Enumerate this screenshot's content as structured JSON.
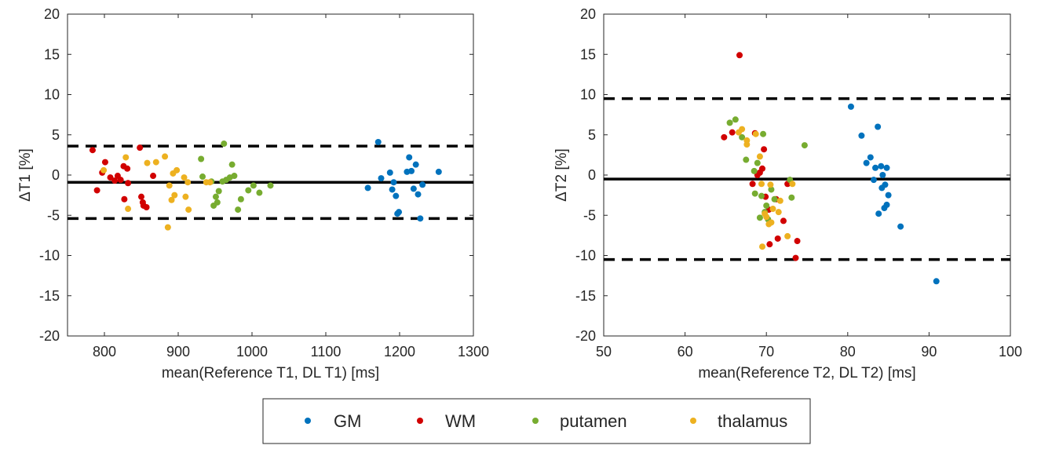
{
  "colors": {
    "GM": "#0072BD",
    "WM": "#D10000",
    "putamen": "#77AC30",
    "thalamus": "#EDB120",
    "axis": "#262626",
    "lines": "#000000"
  },
  "legend": {
    "placement": "bottom-center",
    "items": [
      "GM",
      "WM",
      "putamen",
      "thalamus"
    ]
  },
  "chart_data": [
    {
      "type": "scatter",
      "title": "",
      "xlabel": "mean(Reference T1, DL T1) [ms]",
      "ylabel": "ΔT1 [%]",
      "xlim": [
        750,
        1300
      ],
      "ylim": [
        -20,
        20
      ],
      "xticks": [
        800,
        900,
        1000,
        1100,
        1200,
        1300
      ],
      "yticks": [
        -20,
        -15,
        -10,
        -5,
        0,
        5,
        10,
        15,
        20
      ],
      "grid": false,
      "mean_line": -0.9,
      "limits_of_agreement": [
        3.6,
        -5.4
      ],
      "series": [
        {
          "name": "GM",
          "points": [
            [
              1171,
              4.1
            ],
            [
              1157,
              -1.6
            ],
            [
              1175,
              -0.4
            ],
            [
              1187,
              0.3
            ],
            [
              1190,
              -1.8
            ],
            [
              1192,
              -0.9
            ],
            [
              1195,
              -2.6
            ],
            [
              1197,
              -4.8
            ],
            [
              1199,
              -4.6
            ],
            [
              1210,
              0.4
            ],
            [
              1213,
              2.2
            ],
            [
              1216,
              0.5
            ],
            [
              1219,
              -1.7
            ],
            [
              1222,
              1.3
            ],
            [
              1225,
              -2.4
            ],
            [
              1228,
              -5.4
            ],
            [
              1231,
              -1.2
            ],
            [
              1253,
              0.4
            ]
          ]
        },
        {
          "name": "WM",
          "points": [
            [
              784,
              3.1
            ],
            [
              790,
              -1.9
            ],
            [
              797,
              0.3
            ],
            [
              801,
              1.6
            ],
            [
              808,
              -0.3
            ],
            [
              814,
              -0.7
            ],
            [
              818,
              -0.1
            ],
            [
              822,
              -0.6
            ],
            [
              826,
              1.1
            ],
            [
              827,
              -3.0
            ],
            [
              831,
              0.8
            ],
            [
              832,
              -1.0
            ],
            [
              848,
              3.4
            ],
            [
              850,
              -2.7
            ],
            [
              852,
              -3.4
            ],
            [
              853,
              -3.8
            ],
            [
              857,
              -4.0
            ],
            [
              866,
              -0.1
            ]
          ]
        },
        {
          "name": "putamen",
          "points": [
            [
              931,
              2.0
            ],
            [
              933,
              -0.2
            ],
            [
              945,
              -0.8
            ],
            [
              948,
              -3.8
            ],
            [
              951,
              -2.7
            ],
            [
              953,
              -3.4
            ],
            [
              955,
              -2.0
            ],
            [
              960,
              -0.8
            ],
            [
              962,
              3.9
            ],
            [
              965,
              -0.6
            ],
            [
              970,
              -0.3
            ],
            [
              973,
              1.3
            ],
            [
              976,
              -0.1
            ],
            [
              981,
              -4.3
            ],
            [
              985,
              -3.0
            ],
            [
              995,
              -1.9
            ],
            [
              1002,
              -1.3
            ],
            [
              1010,
              -2.2
            ],
            [
              1025,
              -1.3
            ]
          ]
        },
        {
          "name": "thalamus",
          "points": [
            [
              799,
              0.6
            ],
            [
              829,
              2.2
            ],
            [
              832,
              -4.2
            ],
            [
              858,
              1.5
            ],
            [
              870,
              1.6
            ],
            [
              882,
              2.3
            ],
            [
              886,
              -6.5
            ],
            [
              888,
              -1.3
            ],
            [
              891,
              -3.1
            ],
            [
              893,
              0.2
            ],
            [
              895,
              -2.5
            ],
            [
              898,
              0.6
            ],
            [
              908,
              -0.3
            ],
            [
              910,
              -2.7
            ],
            [
              913,
              -0.9
            ],
            [
              914,
              -4.3
            ],
            [
              938,
              -0.9
            ],
            [
              943,
              -0.9
            ]
          ]
        }
      ]
    },
    {
      "type": "scatter",
      "title": "",
      "xlabel": "mean(Reference T2, DL T2) [ms]",
      "ylabel": "ΔT2 [%]",
      "xlim": [
        50,
        100
      ],
      "ylim": [
        -20,
        20
      ],
      "xticks": [
        50,
        60,
        70,
        80,
        90,
        100
      ],
      "yticks": [
        -20,
        -15,
        -10,
        -5,
        0,
        5,
        10,
        15,
        20
      ],
      "grid": false,
      "mean_line": -0.5,
      "limits_of_agreement": [
        9.5,
        -10.5
      ],
      "series": [
        {
          "name": "GM",
          "points": [
            [
              80.4,
              8.5
            ],
            [
              81.7,
              4.9
            ],
            [
              82.3,
              1.5
            ],
            [
              82.8,
              2.2
            ],
            [
              83.2,
              -0.6
            ],
            [
              83.4,
              0.9
            ],
            [
              83.7,
              6.0
            ],
            [
              83.8,
              -4.8
            ],
            [
              84.1,
              1.1
            ],
            [
              84.2,
              -1.6
            ],
            [
              84.3,
              0.0
            ],
            [
              84.5,
              -4.1
            ],
            [
              84.6,
              -1.2
            ],
            [
              84.8,
              0.9
            ],
            [
              85.0,
              -2.5
            ],
            [
              84.8,
              -3.7
            ],
            [
              86.5,
              -6.4
            ],
            [
              90.9,
              -13.2
            ]
          ]
        },
        {
          "name": "WM",
          "points": [
            [
              64.8,
              4.7
            ],
            [
              65.8,
              5.3
            ],
            [
              66.7,
              14.9
            ],
            [
              68.3,
              -1.1
            ],
            [
              68.6,
              5.2
            ],
            [
              68.9,
              0.0
            ],
            [
              69.2,
              0.3
            ],
            [
              69.5,
              0.8
            ],
            [
              69.7,
              3.2
            ],
            [
              69.9,
              -2.7
            ],
            [
              70.3,
              -4.3
            ],
            [
              70.4,
              -8.6
            ],
            [
              71.2,
              -3.0
            ],
            [
              71.4,
              -7.9
            ],
            [
              72.1,
              -5.7
            ],
            [
              72.6,
              -1.1
            ],
            [
              73.6,
              -10.3
            ],
            [
              73.8,
              -8.2
            ]
          ]
        },
        {
          "name": "putamen",
          "points": [
            [
              65.5,
              6.5
            ],
            [
              66.2,
              6.9
            ],
            [
              67.0,
              4.7
            ],
            [
              67.5,
              1.9
            ],
            [
              68.5,
              0.5
            ],
            [
              68.6,
              -2.3
            ],
            [
              68.9,
              1.5
            ],
            [
              69.2,
              -5.3
            ],
            [
              69.4,
              -2.6
            ],
            [
              69.6,
              5.1
            ],
            [
              69.8,
              -4.6
            ],
            [
              70.0,
              -3.8
            ],
            [
              70.2,
              -5.5
            ],
            [
              70.6,
              -1.8
            ],
            [
              71.0,
              -3.0
            ],
            [
              72.9,
              -0.6
            ],
            [
              73.1,
              -2.8
            ],
            [
              74.7,
              3.7
            ]
          ]
        },
        {
          "name": "thalamus",
          "points": [
            [
              66.6,
              5.3
            ],
            [
              67.0,
              5.7
            ],
            [
              67.6,
              4.3
            ],
            [
              67.6,
              3.8
            ],
            [
              68.7,
              5.1
            ],
            [
              69.2,
              2.3
            ],
            [
              69.4,
              -1.1
            ],
            [
              69.5,
              -8.9
            ],
            [
              69.8,
              -4.8
            ],
            [
              70.0,
              -5.2
            ],
            [
              70.3,
              -6.1
            ],
            [
              70.5,
              -1.2
            ],
            [
              70.6,
              -5.9
            ],
            [
              70.8,
              -4.2
            ],
            [
              71.5,
              -4.6
            ],
            [
              71.7,
              -3.2
            ],
            [
              72.6,
              -7.6
            ],
            [
              73.2,
              -1.1
            ]
          ]
        }
      ]
    }
  ]
}
